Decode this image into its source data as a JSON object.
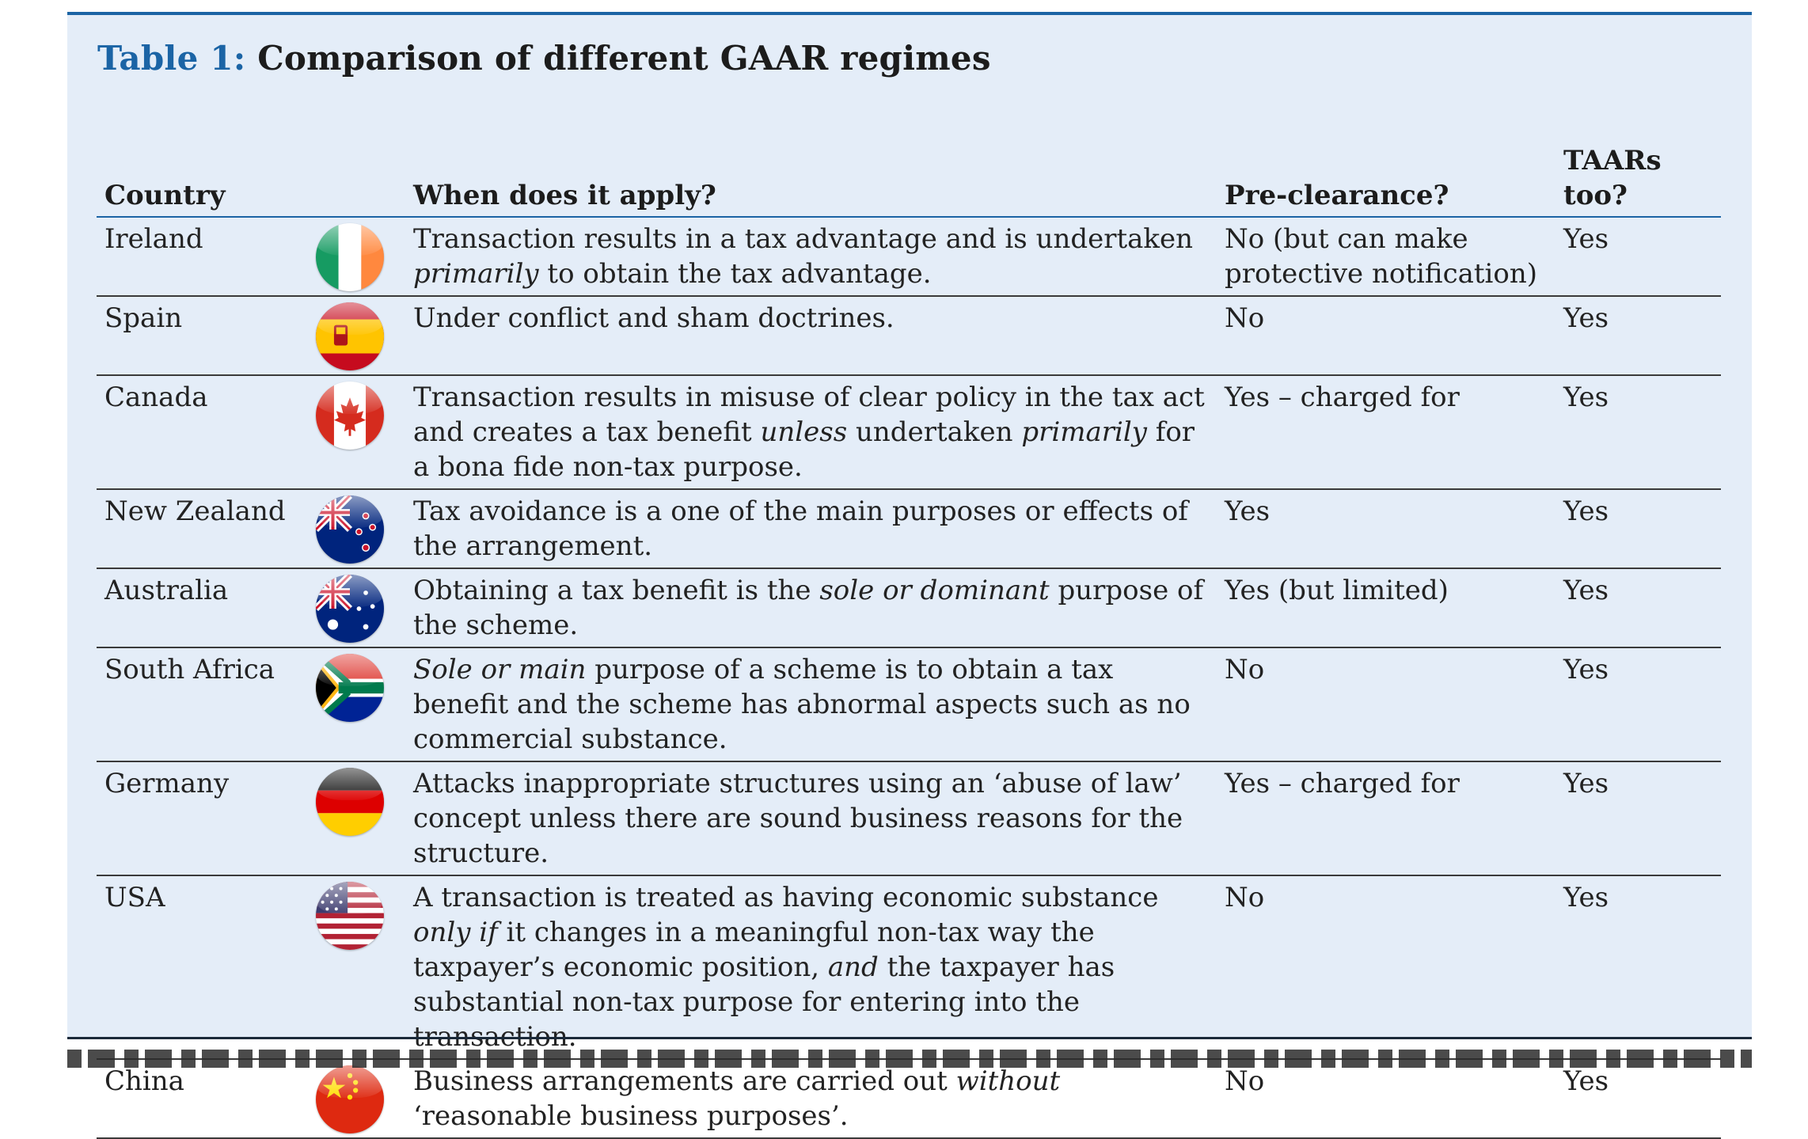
{
  "title": {
    "label": "Table 1:",
    "text": "Comparison of different GAAR regimes"
  },
  "table": {
    "headers": {
      "country": "Country",
      "when": "When does it apply?",
      "pre": "Pre-clearance?",
      "taar": "TAARs too?"
    },
    "rows": [
      {
        "country": "Ireland",
        "flag_icon": "ireland-flag-icon",
        "when": [
          {
            "t": "Transaction results in a tax advantage and is undertaken "
          },
          {
            "t": "primarily",
            "i": true
          },
          {
            "t": " to obtain the tax advantage."
          }
        ],
        "pre": "No (but can make protective notification)",
        "taar": "Yes"
      },
      {
        "country": "Spain",
        "flag_icon": "spain-flag-icon",
        "when": [
          {
            "t": "Under conflict and sham doctrines."
          }
        ],
        "pre": "No",
        "taar": "Yes"
      },
      {
        "country": "Canada",
        "flag_icon": "canada-flag-icon",
        "when": [
          {
            "t": "Transaction results in misuse of clear policy in the tax act and creates a tax benefit "
          },
          {
            "t": "unless",
            "i": true
          },
          {
            "t": " undertaken "
          },
          {
            "t": "primarily",
            "i": true
          },
          {
            "t": " for a bona fide non-tax purpose."
          }
        ],
        "pre": "Yes – charged for",
        "taar": "Yes"
      },
      {
        "country": "New Zealand",
        "flag_icon": "new-zealand-flag-icon",
        "when": [
          {
            "t": "Tax avoidance is a one of the main purposes or effects of the arrangement."
          }
        ],
        "pre": "Yes",
        "taar": "Yes"
      },
      {
        "country": "Australia",
        "flag_icon": "australia-flag-icon",
        "when": [
          {
            "t": "Obtaining a tax benefit is the "
          },
          {
            "t": "sole or dominant",
            "i": true
          },
          {
            "t": " purpose of the scheme."
          }
        ],
        "pre": "Yes (but limited)",
        "taar": "Yes"
      },
      {
        "country": "South Africa",
        "flag_icon": "south-africa-flag-icon",
        "when": [
          {
            "t": "Sole or main",
            "i": true
          },
          {
            "t": " purpose of a scheme is to obtain a tax benefit and the scheme has abnormal aspects such as no commercial substance."
          }
        ],
        "pre": "No",
        "taar": "Yes"
      },
      {
        "country": "Germany",
        "flag_icon": "germany-flag-icon",
        "when": [
          {
            "t": "Attacks inappropriate structures using an ‘abuse of law’ concept unless there are sound business reasons for the structure."
          }
        ],
        "pre": "Yes – charged for",
        "taar": "Yes"
      },
      {
        "country": "USA",
        "flag_icon": "usa-flag-icon",
        "when": [
          {
            "t": "A transaction is treated as having economic substance "
          },
          {
            "t": "only if",
            "i": true
          },
          {
            "t": " it changes in a meaningful non-tax way the taxpayer’s economic position, "
          },
          {
            "t": "and",
            "i": true
          },
          {
            "t": " the taxpayer has substantial non-tax purpose for entering into the transaction."
          }
        ],
        "pre": "No",
        "taar": "Yes"
      },
      {
        "country": "China",
        "flag_icon": "china-flag-icon",
        "when": [
          {
            "t": "Business arrangements are carried out "
          },
          {
            "t": "without",
            "i": true
          },
          {
            "t": " ‘reasonable business purposes’."
          }
        ],
        "pre": "No",
        "taar": "Yes"
      }
    ]
  }
}
